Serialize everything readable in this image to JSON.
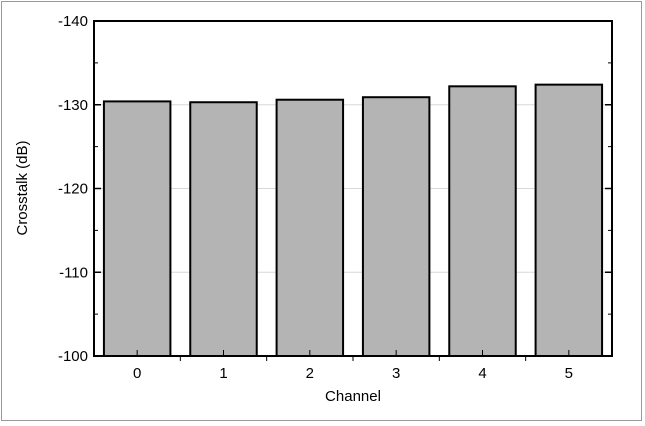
{
  "chart_data": {
    "type": "bar",
    "categories": [
      "0",
      "1",
      "2",
      "3",
      "4",
      "5"
    ],
    "values": [
      -130.4,
      -130.3,
      -130.6,
      -130.9,
      -132.2,
      -132.4
    ],
    "xlabel": "Channel",
    "ylabel": "Crosstalk (dB)",
    "ylim": [
      -100,
      -140
    ],
    "y_ticks": [
      "-140",
      "-130",
      "-120",
      "-110",
      "-100"
    ],
    "y_tick_values": [
      -140,
      -130,
      -120,
      -110,
      -100
    ],
    "grid": true,
    "bar_color": "#b4b4b4",
    "bar_edge_color": "#000000",
    "grid_color": "#d8d8d8"
  }
}
